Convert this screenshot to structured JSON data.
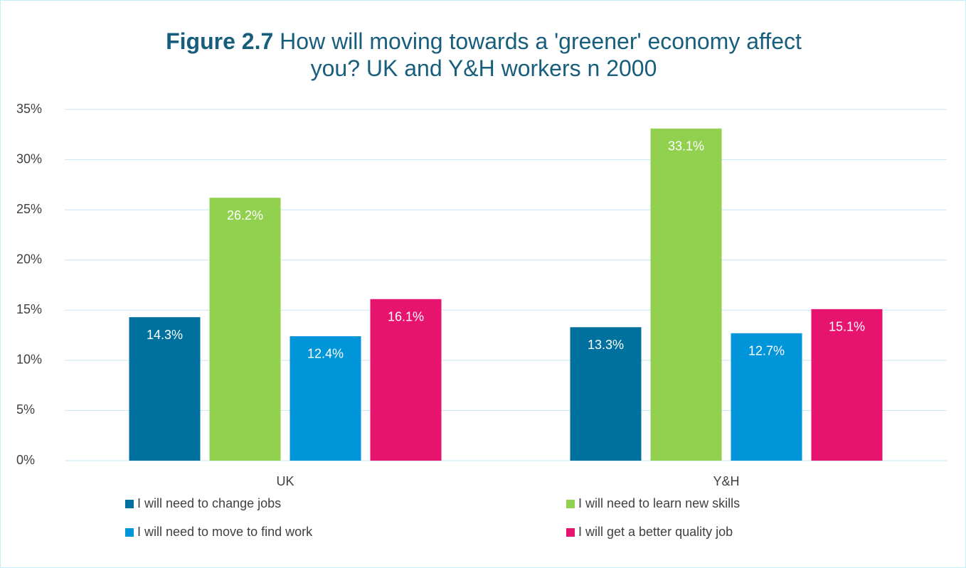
{
  "chart_data": {
    "type": "bar",
    "title_label": "Figure 2.7",
    "title": "How will moving towards a 'greener' economy affect you? UK and Y&H workers n 2000",
    "categories": [
      "UK",
      "Y&H"
    ],
    "series": [
      {
        "name": "I will need to change jobs",
        "color": "#00709e",
        "values": [
          14.3,
          13.3
        ],
        "value_labels": [
          "14.3%",
          "13.3%"
        ]
      },
      {
        "name": "I will need to learn new skills",
        "color": "#92d050",
        "values": [
          26.2,
          33.1
        ],
        "value_labels": [
          "26.2%",
          "33.1%"
        ]
      },
      {
        "name": "I will need to move to find work",
        "color": "#0095d9",
        "values": [
          12.4,
          12.7
        ],
        "value_labels": [
          "12.4%",
          "12.7%"
        ]
      },
      {
        "name": "I will get a better quality job",
        "color": "#e6136f",
        "values": [
          16.1,
          15.1
        ],
        "value_labels": [
          "16.1%",
          "15.1%"
        ]
      }
    ],
    "ylim": [
      0,
      35
    ],
    "yticks": [
      {
        "value": 0,
        "label": "0%"
      },
      {
        "value": 5,
        "label": "5%"
      },
      {
        "value": 10,
        "label": "10%"
      },
      {
        "value": 15,
        "label": "15%"
      },
      {
        "value": 20,
        "label": "20%"
      },
      {
        "value": 25,
        "label": "25%"
      },
      {
        "value": 30,
        "label": "30%"
      },
      {
        "value": 35,
        "label": "35%"
      }
    ],
    "grid": true,
    "legend": "bottom"
  }
}
